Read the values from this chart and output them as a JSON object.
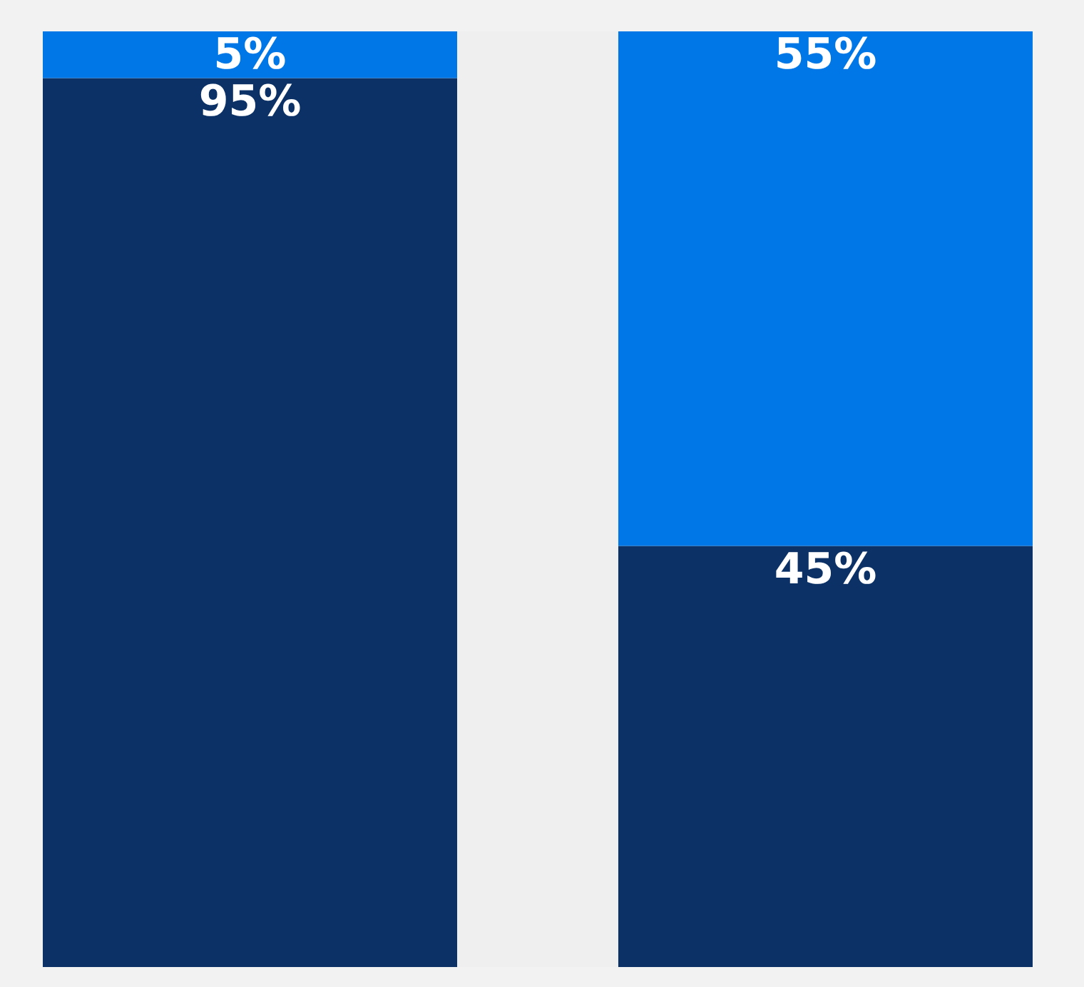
{
  "chart_data": {
    "type": "bar",
    "stacked": true,
    "categories": [
      null,
      null
    ],
    "ylim": [
      0,
      100
    ],
    "tick_labels": false,
    "series": [
      {
        "color": "#0b3166",
        "values": [
          95,
          45
        ],
        "value_labels": [
          "95%",
          "45%"
        ]
      },
      {
        "color": "#0077e6",
        "values": [
          5,
          55
        ],
        "value_labels": [
          "5%",
          "55%"
        ]
      }
    ]
  }
}
